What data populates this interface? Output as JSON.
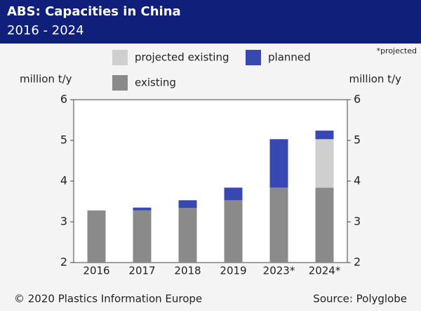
{
  "chart_data": {
    "type": "stacked_bar",
    "title": "ABS: Capacities in China",
    "subtitle": "2016 - 2024",
    "note": "*projected",
    "y_label": "million t/y",
    "y2_label": "million t/y",
    "categories": [
      "2016",
      "2017",
      "2018",
      "2019",
      "2023*",
      "2024*"
    ],
    "series": [
      {
        "name": "existing",
        "color": "#8a8a8a",
        "values": [
          3.28,
          3.28,
          3.34,
          3.53,
          3.84,
          3.84
        ]
      },
      {
        "name": "projected existing",
        "color": "#cfcfcf",
        "values": [
          0,
          0,
          0,
          0,
          0,
          1.19
        ]
      },
      {
        "name": "planned",
        "color": "#3848b0",
        "values": [
          0,
          0.07,
          0.19,
          0.31,
          1.19,
          0.21
        ]
      }
    ],
    "ylim": [
      2,
      6
    ],
    "yticks": [
      2,
      3,
      4,
      5,
      6
    ],
    "y2lim": [
      2,
      6
    ],
    "y2ticks": [
      2,
      3,
      4,
      5,
      6
    ],
    "copyright": "© 2020 Plastics Information Europe",
    "source": "Source: Polyglobe"
  }
}
